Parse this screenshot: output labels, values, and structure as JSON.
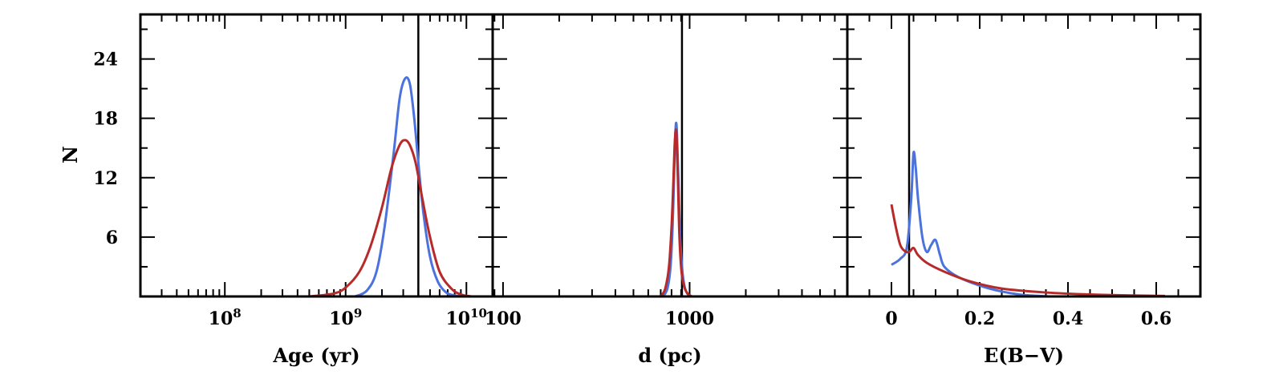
{
  "chart_data": {
    "ylabel": "N",
    "yticks": [
      6,
      12,
      18,
      24
    ],
    "ylim": [
      0,
      28.5
    ],
    "colors": {
      "blue": "#4b72dd",
      "red": "#b62a2a",
      "axis": "#000000"
    },
    "panels": [
      {
        "id": "age",
        "type": "line",
        "xlabel": "Age (yr)",
        "xscale": "log",
        "xlim": [
          20000000,
          16500000000
        ],
        "xticks": [
          {
            "value": 100000000,
            "base": "10",
            "exp": "8"
          },
          {
            "value": 1000000000,
            "base": "10",
            "exp": "9"
          },
          {
            "value": 10000000000,
            "base": "10",
            "exp": "10"
          }
        ],
        "vline": 4000000000,
        "series": [
          {
            "color": "blue",
            "x": [
              1200000000,
              1500000000,
              1800000000,
              2100000000,
              2500000000,
              2800000000,
              3100000000,
              3400000000,
              3700000000,
              4000000000,
              4400000000,
              5000000000,
              5800000000,
              6800000000,
              8000000000,
              9000000000
            ],
            "y": [
              0,
              0.6,
              2.5,
              7,
              14.5,
              20,
              22,
              21.5,
              18,
              13.5,
              8.5,
              4,
              1.5,
              0.4,
              0.1,
              0
            ]
          },
          {
            "color": "red",
            "x": [
              500000000,
              800000000,
              1000000000,
              1300000000,
              1600000000,
              2000000000,
              2400000000,
              2800000000,
              3100000000,
              3400000000,
              3800000000,
              4300000000,
              5000000000,
              6000000000,
              7500000000,
              9000000000,
              11000000000
            ],
            "y": [
              0,
              0.3,
              0.9,
              2.5,
              5,
              9,
              13,
              15.3,
              15.8,
              15.3,
              13.5,
              10,
              6,
              2.5,
              0.8,
              0.2,
              0
            ]
          }
        ]
      },
      {
        "id": "distance",
        "type": "line",
        "xlabel": "d (pc)",
        "xscale": "log",
        "xlim": [
          88,
          7000
        ],
        "xticks": [
          {
            "value": 100,
            "label": "100"
          },
          {
            "value": 1000,
            "label": "1000"
          }
        ],
        "vline": 910,
        "series": [
          {
            "color": "blue",
            "x": [
              720,
              760,
              790,
              810,
              825,
              835,
              845,
              855,
              870,
              890,
              915,
              940,
              970,
              1010
            ],
            "y": [
              0,
              0.8,
              3,
              7,
              12,
              15.5,
              17.5,
              16.5,
              12,
              6,
              2.5,
              1,
              0.3,
              0
            ]
          },
          {
            "color": "red",
            "x": [
              700,
              740,
              775,
              800,
              818,
              830,
              842,
              852,
              865,
              882,
              905,
              935,
              975,
              1030
            ],
            "y": [
              0,
              0.8,
              3,
              7,
              11.5,
              15,
              16.8,
              16,
              12,
              6,
              2.5,
              1,
              0.3,
              0
            ]
          }
        ]
      },
      {
        "id": "extinction",
        "type": "line",
        "xlabel": "E(B−V)",
        "xscale": "linear",
        "xlim": [
          -0.1,
          0.7
        ],
        "xticks": [
          {
            "value": 0,
            "label": "0"
          },
          {
            "value": 0.2,
            "label": "0.2"
          },
          {
            "value": 0.4,
            "label": "0.4"
          },
          {
            "value": 0.6,
            "label": "0.6"
          }
        ],
        "vline": 0.04,
        "series": [
          {
            "color": "blue",
            "x": [
              0,
              0.02,
              0.035,
              0.045,
              0.05,
              0.055,
              0.06,
              0.07,
              0.08,
              0.09,
              0.1,
              0.11,
              0.12,
              0.15,
              0.2,
              0.25,
              0.3,
              0.36
            ],
            "y": [
              3.2,
              3.8,
              5,
              10,
              14.5,
              13,
              10,
              6,
              4.5,
              5.2,
              5.7,
              4.2,
              3,
              2,
              1.1,
              0.5,
              0.15,
              0
            ]
          },
          {
            "color": "red",
            "x": [
              0,
              0.01,
              0.02,
              0.03,
              0.04,
              0.05,
              0.06,
              0.08,
              0.12,
              0.18,
              0.25,
              0.35,
              0.45,
              0.55,
              0.62
            ],
            "y": [
              9.3,
              7,
              5.2,
              4.6,
              4.5,
              4.9,
              4.2,
              3.4,
              2.5,
              1.5,
              0.8,
              0.4,
              0.2,
              0.1,
              0.05
            ]
          }
        ]
      }
    ]
  }
}
